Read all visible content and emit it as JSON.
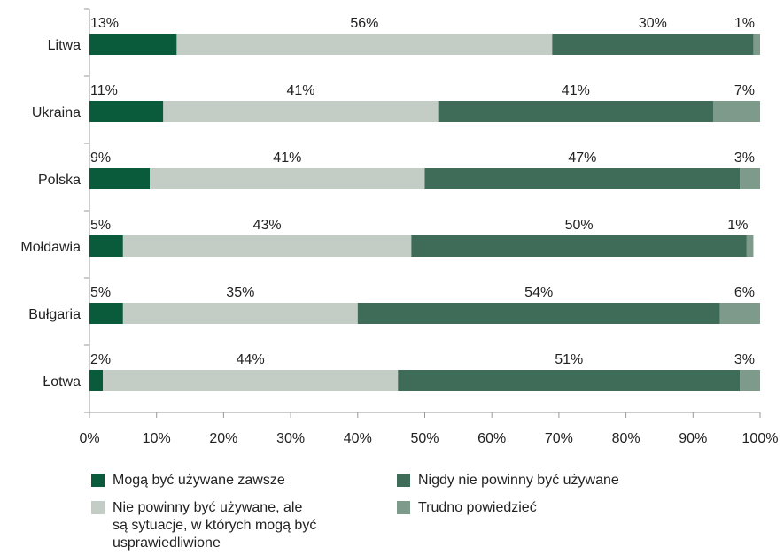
{
  "chart_data": {
    "type": "bar",
    "orientation": "horizontal",
    "stacked": true,
    "categories": [
      "Litwa",
      "Ukraina",
      "Polska",
      "Mołdawia",
      "Bułgaria",
      "Łotwa"
    ],
    "series": [
      {
        "name": "Mogą być używane zawsze",
        "color": "#0a5a3c",
        "values": [
          13,
          11,
          9,
          5,
          5,
          2
        ]
      },
      {
        "name": "Nie powinny być używane, ale\nsą sytuacje, w których mogą być\nusprawiedliwione",
        "color": "#c4ccc6",
        "values": [
          56,
          41,
          41,
          43,
          35,
          44
        ]
      },
      {
        "name": "Nigdy nie powinny być używane",
        "color": "#3e6c58",
        "values": [
          30,
          41,
          47,
          50,
          54,
          51
        ]
      },
      {
        "name": "Trudno powiedzieć",
        "color": "#7d9a8b",
        "values": [
          1,
          7,
          3,
          1,
          6,
          3
        ]
      }
    ],
    "xlim": [
      0,
      100
    ],
    "xticks": [
      "0%",
      "10%",
      "20%",
      "30%",
      "40%",
      "50%",
      "60%",
      "70%",
      "80%",
      "90%",
      "100%"
    ],
    "grid": false,
    "legend_position": "bottom"
  }
}
